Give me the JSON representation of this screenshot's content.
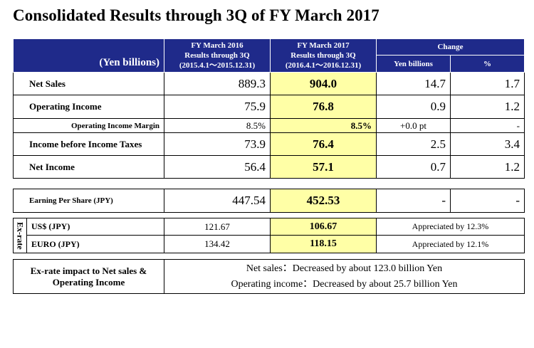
{
  "title": "Consolidated Results through 3Q of FY March 2017",
  "header": {
    "unit": "(Yen billions)",
    "fy2016": {
      "line1": "FY March 2016",
      "line2": "Results through 3Q",
      "line3": "(2015.4.1～2015.12.31)"
    },
    "fy2017": {
      "line1": "FY March 2017",
      "line2": "Results through 3Q",
      "line3": "(2016.4.1～2016.12.31)"
    },
    "change": "Change",
    "yen_billions": "Yen billions",
    "percent": "%"
  },
  "rows": {
    "net_sales": {
      "label": "Net Sales",
      "fy2016": "889.3",
      "fy2017": "904.0",
      "chg": "14.7",
      "pct": "1.7"
    },
    "op_income": {
      "label": "Operating Income",
      "fy2016": "75.9",
      "fy2017": "76.8",
      "chg": "0.9",
      "pct": "1.2"
    },
    "op_margin": {
      "label": "Operating Income Margin",
      "fy2016": "8.5%",
      "fy2017": "8.5%",
      "chg": "+0.0 pt",
      "pct": "-"
    },
    "pretax": {
      "label": "Income before Income Taxes",
      "fy2016": "73.9",
      "fy2017": "76.4",
      "chg": "2.5",
      "pct": "3.4"
    },
    "net_income": {
      "label": "Net Income",
      "fy2016": "56.4",
      "fy2017": "57.1",
      "chg": "0.7",
      "pct": "1.2"
    }
  },
  "eps": {
    "label": "Earning Per Share (JPY)",
    "fy2016": "447.54",
    "fy2017": "452.53",
    "chg": "-",
    "pct": "-"
  },
  "exrate": {
    "side_label": "Ex-rate",
    "usd": {
      "label": "US$ (JPY)",
      "fy2016": "121.67",
      "fy2017": "106.67",
      "note": "Appreciated by 12.3%"
    },
    "euro": {
      "label": "EURO (JPY)",
      "fy2016": "134.42",
      "fy2017": "118.15",
      "note": "Appreciated by 12.1%"
    }
  },
  "impact": {
    "label_line1": "Ex-rate impact to Net sales &",
    "label_line2": "Operating Income",
    "net_sales": "Net sales：Decreased by about 123.0 billion Yen",
    "op_income": "Operating income：Decreased by about 25.7 billion Yen"
  }
}
